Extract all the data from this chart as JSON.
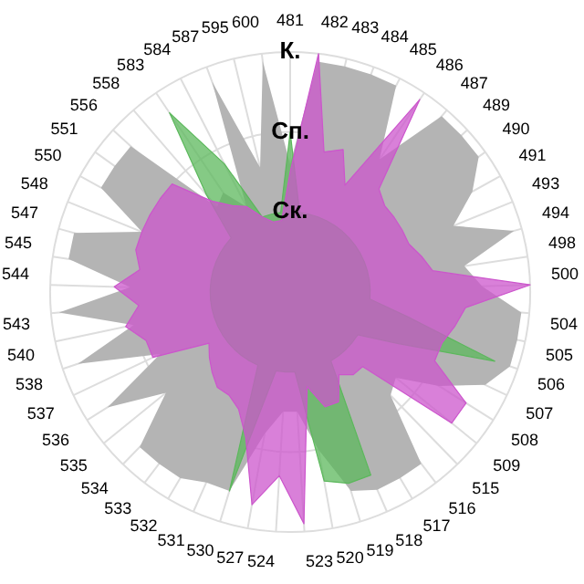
{
  "chart_data": {
    "type": "radar",
    "categories": [
      "481",
      "482",
      "483",
      "484",
      "485",
      "486",
      "487",
      "489",
      "490",
      "491",
      "493",
      "494",
      "498",
      "500",
      "504",
      "505",
      "506",
      "507",
      "508",
      "509",
      "515",
      "516",
      "517",
      "518",
      "519",
      "520",
      "523",
      "524",
      "527",
      "530",
      "531",
      "532",
      "533",
      "534",
      "535",
      "536",
      "537",
      "538",
      "540",
      "543",
      "544",
      "545",
      "547",
      "548",
      "550",
      "551",
      "556",
      "558",
      "583",
      "584",
      "587",
      "595",
      "600"
    ],
    "ylim": [
      0,
      3
    ],
    "yticks": [
      {
        "value": 1,
        "label": "Ск."
      },
      {
        "value": 2,
        "label": "Сп."
      },
      {
        "value": 3,
        "label": "К."
      }
    ],
    "grid": true,
    "legend": false,
    "series": [
      {
        "color": "#b4b4b4",
        "values": [
          1.6,
          2.9,
          2.9,
          2.9,
          2.9,
          2.0,
          2.9,
          2.9,
          2.9,
          2.6,
          2.2,
          2.9,
          2.2,
          2.4,
          2.9,
          2.9,
          2.9,
          2.7,
          2.2,
          1.7,
          1.8,
          2.7,
          2.7,
          2.7,
          2.6,
          2.0,
          1.5,
          1.5,
          1.8,
          2.6,
          2.6,
          2.7,
          2.7,
          2.7,
          2.0,
          2.7,
          1.8,
          2.8,
          2.0,
          2.9,
          2.0,
          2.8,
          2.8,
          2.0,
          2.7,
          2.7,
          2.7,
          1.4,
          1.5,
          1.2,
          2.8,
          1.6,
          2.9
        ]
      },
      {
        "color": "#5cb85c",
        "values": [
          2.0,
          1.0,
          1.0,
          1.0,
          1.0,
          1.0,
          1.0,
          1.0,
          1.0,
          1.0,
          1.0,
          1.0,
          1.0,
          1.0,
          1.0,
          1.5,
          2.7,
          1.5,
          1.0,
          1.0,
          1.0,
          1.0,
          1.0,
          2.5,
          2.5,
          2.4,
          1.0,
          1.0,
          1.0,
          2.6,
          1.0,
          1.0,
          1.0,
          1.0,
          1.0,
          1.0,
          1.0,
          1.0,
          1.0,
          1.0,
          1.0,
          1.0,
          1.0,
          1.0,
          1.0,
          1.0,
          1.0,
          1.6,
          2.7,
          1.8,
          1.0,
          1.0,
          1.0
        ]
      },
      {
        "color": "#cc55cc",
        "values": [
          1.5,
          3.0,
          1.8,
          1.9,
          1.5,
          2.9,
          1.7,
          1.6,
          1.6,
          1.6,
          1.6,
          1.7,
          1.8,
          3.0,
          2.2,
          2.1,
          2.0,
          2.0,
          2.6,
          2.6,
          1.3,
          1.3,
          1.2,
          1.5,
          1.5,
          1.2,
          2.9,
          2.3,
          2.7,
          1.9,
          1.6,
          1.5,
          1.5,
          1.4,
          1.3,
          1.2,
          1.9,
          1.9,
          2.1,
          1.9,
          2.2,
          1.9,
          2.0,
          2.0,
          2.0,
          2.0,
          2.0,
          1.5,
          1.3,
          1.2,
          1.0,
          0.9,
          0.9
        ]
      }
    ]
  }
}
